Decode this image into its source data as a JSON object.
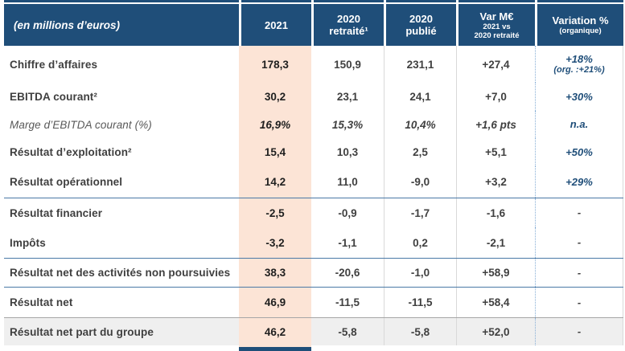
{
  "colors": {
    "header_bg": "#1f4e79",
    "header_text": "#ffffff",
    "highlight_column_bg": "#fce4d6",
    "last_row_bg": "#efefef",
    "group_separator_blue": "#4a79a6",
    "column_grid_line": "#d9d9d9",
    "accent_text_blue": "#1f4e79",
    "body_text": "#3f3f3f"
  },
  "header": {
    "label": "(en millions d’euros)",
    "c2021": "2021",
    "c2020r": [
      "2020",
      "retraité¹"
    ],
    "c2020p": [
      "2020",
      "publié"
    ],
    "cvar": [
      "Var M€",
      "2021 vs",
      "2020 retraité"
    ],
    "cpct": [
      "Variation %",
      "(organique)"
    ]
  },
  "rows": [
    {
      "label": "Chiffre d’affaires",
      "v2021": "178,3",
      "v2020r": "150,9",
      "v2020p": "231,1",
      "var": "+27,4",
      "pct": "+18%",
      "pct2": "(org. :+21%)"
    },
    {
      "label": "EBITDA courant²",
      "v2021": "30,2",
      "v2020r": "23,1",
      "v2020p": "24,1",
      "var": "+7,0",
      "pct": "+30%"
    },
    {
      "label": "Marge d’EBITDA courant (%)",
      "v2021": "16,9%",
      "v2020r": "15,3%",
      "v2020p": "10,4%",
      "var": "+1,6 pts",
      "pct": "n.a."
    },
    {
      "label": "Résultat d’exploitation²",
      "v2021": "15,4",
      "v2020r": "10,3",
      "v2020p": "2,5",
      "var": "+5,1",
      "pct": "+50%"
    },
    {
      "label": "Résultat opérationnel",
      "v2021": "14,2",
      "v2020r": "11,0",
      "v2020p": "-9,0",
      "var": "+3,2",
      "pct": "+29%"
    },
    {
      "label": "Résultat financier",
      "v2021": "-2,5",
      "v2020r": "-0,9",
      "v2020p": "-1,7",
      "var": "-1,6",
      "pct": "-"
    },
    {
      "label": "Impôts",
      "v2021": "-3,2",
      "v2020r": "-1,1",
      "v2020p": "0,2",
      "var": "-2,1",
      "pct": "-"
    },
    {
      "label": "Résultat net des activités non poursuivies",
      "v2021": "38,3",
      "v2020r": "-20,6",
      "v2020p": "-1,0",
      "var": "+58,9",
      "pct": "-"
    },
    {
      "label": "Résultat net",
      "v2021": "46,9",
      "v2020r": "-11,5",
      "v2020p": "-11,5",
      "var": "+58,4",
      "pct": "-"
    },
    {
      "label": "Résultat net part du groupe",
      "v2021": "46,2",
      "v2020r": "-5,8",
      "v2020p": "-5,8",
      "var": "+52,0",
      "pct": "-"
    }
  ]
}
